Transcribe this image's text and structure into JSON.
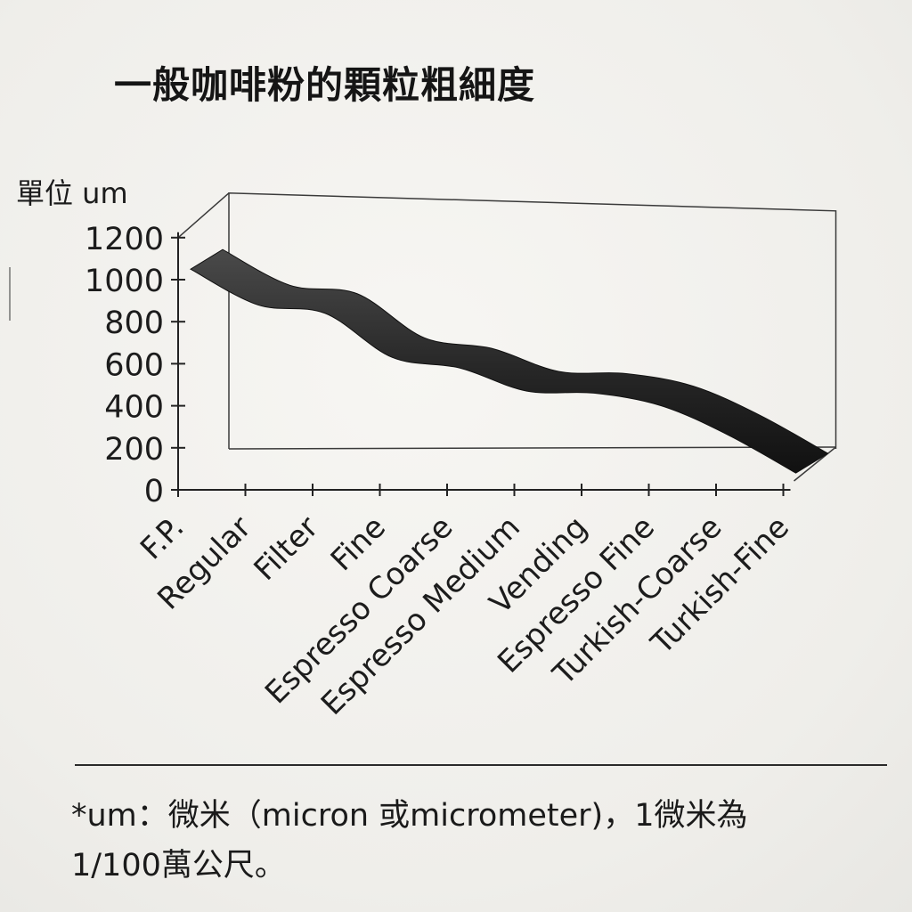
{
  "title": "一般咖啡粉的顆粒粗細度",
  "chart_data": {
    "type": "area",
    "ylabel": "單位 um",
    "ylim": [
      0,
      1200
    ],
    "yticks": [
      "0",
      "200",
      "400",
      "600",
      "800",
      "1000",
      "1200"
    ],
    "categories": [
      "F.P.",
      "Regular",
      "Filter",
      "Fine",
      "Espresso Coarse",
      "Espresso Medium",
      "Vending",
      "Espresso Fine",
      "Turkish-Coarse",
      "Turkish-Fine"
    ],
    "values": [
      1050,
      880,
      840,
      630,
      580,
      470,
      460,
      400,
      260,
      80
    ]
  },
  "footnote": {
    "line1": "*um：微米（micron 或micrometer)，1微米為",
    "line2": "1/100萬公尺。"
  }
}
